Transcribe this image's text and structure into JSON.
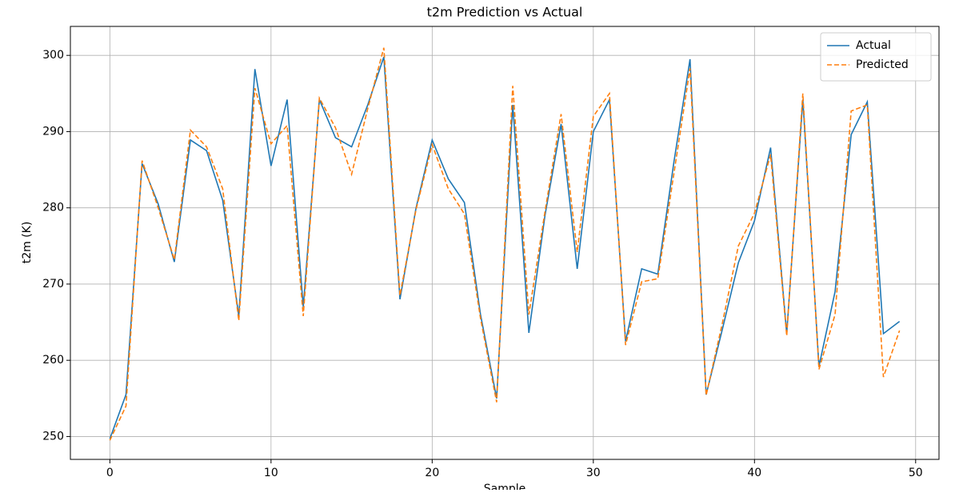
{
  "chart_data": {
    "type": "line",
    "title": "t2m Prediction vs Actual",
    "x_label": "Sample",
    "y_label": "t2m (K)",
    "x": [
      0,
      1,
      2,
      3,
      4,
      5,
      6,
      7,
      8,
      9,
      10,
      11,
      12,
      13,
      14,
      15,
      16,
      17,
      18,
      19,
      20,
      21,
      22,
      23,
      24,
      25,
      26,
      27,
      28,
      29,
      30,
      31,
      32,
      33,
      34,
      35,
      36,
      37,
      38,
      39,
      40,
      41,
      42,
      43,
      44,
      45,
      46,
      47,
      48,
      49
    ],
    "series": [
      {
        "name": "Actual",
        "color": "#1f77b4",
        "dash": "solid",
        "values": [
          249.7,
          255.5,
          285.8,
          280.5,
          272.9,
          288.9,
          287.5,
          281,
          265.8,
          298.2,
          285.5,
          294.2,
          267,
          294.2,
          289.2,
          288,
          293.5,
          299.8,
          268,
          280,
          288.9,
          283.8,
          280.7,
          266,
          255,
          293.5,
          263.6,
          279,
          291,
          272,
          290,
          294.2,
          262.5,
          272,
          271.3,
          286,
          299.5,
          255.5,
          264,
          272.8,
          278.3,
          287.9,
          263.5,
          294.2,
          259.2,
          269,
          289.6,
          293.9,
          263.5,
          265.1
        ]
      },
      {
        "name": "Predicted",
        "color": "#ff7f0e",
        "dash": "dashed",
        "values": [
          249.5,
          254,
          286.2,
          280,
          273.2,
          290.2,
          288,
          282.5,
          265.2,
          295.7,
          288.4,
          290.8,
          265.8,
          294.4,
          290.5,
          284.4,
          293,
          301,
          268.5,
          279.8,
          288.3,
          282.5,
          279.2,
          265.5,
          254.5,
          296,
          266,
          279.5,
          292.3,
          274.2,
          292,
          295,
          262,
          270.3,
          270.7,
          284.5,
          298.3,
          255.4,
          264.8,
          275,
          279.3,
          287,
          263.2,
          295,
          258.8,
          266,
          292.7,
          293.5,
          257.8,
          263.9
        ]
      }
    ],
    "xlim": [
      -2.45,
      51.45
    ],
    "ylim": [
      247,
      303.8
    ],
    "xticks": [
      0,
      10,
      20,
      30,
      40,
      50
    ],
    "yticks": [
      250,
      260,
      270,
      280,
      290,
      300
    ],
    "grid": true,
    "legend": "upper right"
  }
}
